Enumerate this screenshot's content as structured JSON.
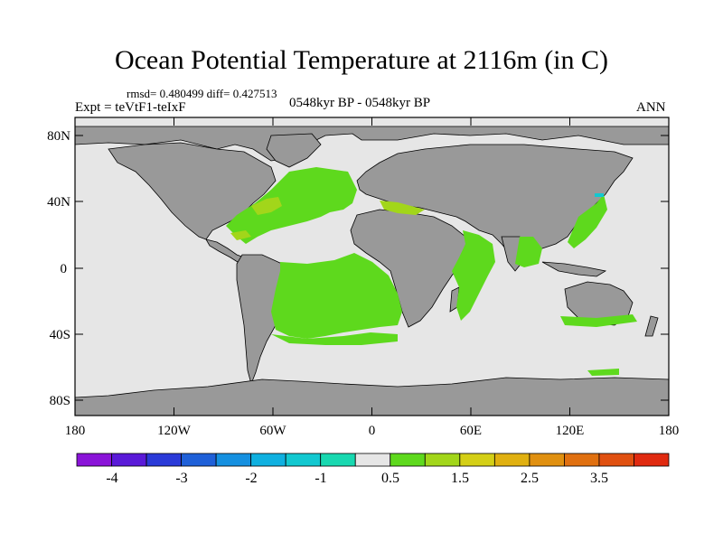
{
  "title": "Ocean Potential Temperature at 2116m (in C)",
  "subtitle_stats": "rmsd= 0.480499 diff= 0.427513",
  "experiment": "Expt = teVtF1-teIxF",
  "period": "0548kyr BP - 0548kyr BP",
  "season": "ANN",
  "lat_ticks": [
    "80N",
    "40N",
    "0",
    "40S",
    "80S"
  ],
  "lon_ticks": [
    "180",
    "120W",
    "60W",
    "0",
    "60E",
    "120E",
    "180"
  ],
  "colorbar": {
    "colors": [
      "#8a14d8",
      "#5a1ad8",
      "#2a3ad8",
      "#1f60d8",
      "#1590e0",
      "#0fb0e0",
      "#12c8d0",
      "#18d8b0",
      "#e6e6e6",
      "#5ed91d",
      "#a2d61a",
      "#d4cf16",
      "#e0b010",
      "#e09010",
      "#e07010",
      "#e05010",
      "#e02a10"
    ],
    "labels": [
      "-4",
      "-3",
      "-2",
      "-1",
      "0.5",
      "1.5",
      "2.5",
      "3.5"
    ]
  },
  "colors": {
    "land": "#999999",
    "ocean_neutral": "#e6e6e6",
    "warm_anomaly": "#5ed91d",
    "warmer_anomaly": "#a2d61a",
    "cool_anomaly": "#12c8d0"
  }
}
